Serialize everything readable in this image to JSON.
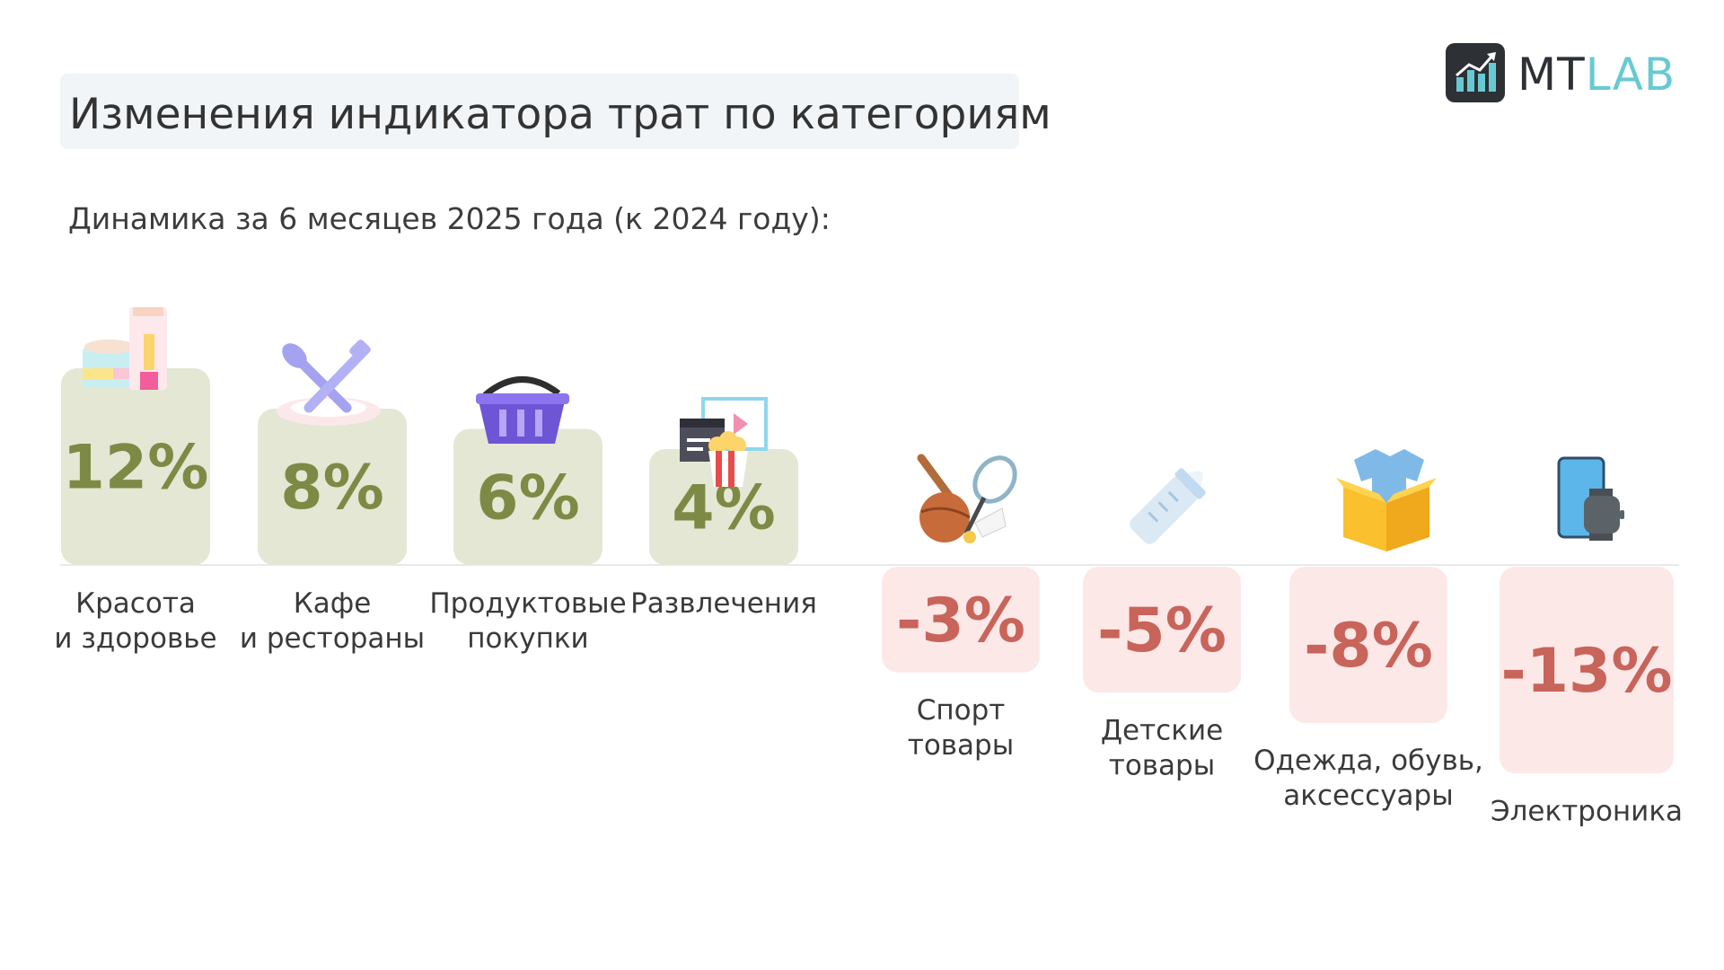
{
  "header": {
    "title": "Изменения индикатора трат по категориям",
    "subtitle": "Динамика за 6 месяцев 2025 года (к 2024 году):"
  },
  "logo": {
    "text_part1": "MT",
    "text_part2": "LAB",
    "icon": "chart-arrow-logo-icon"
  },
  "colors": {
    "positive_box": "#e4e7d4",
    "positive_text": "#7d8a45",
    "negative_box": "#fde8e8",
    "negative_text": "#c8645a",
    "accent": "#69c9d2"
  },
  "chart_data": {
    "type": "bar",
    "unit": "%",
    "categories": [
      {
        "label": [
          "Красота",
          "и здоровье"
        ],
        "value": 12,
        "display": "12%",
        "icon": "cosmetics-icon"
      },
      {
        "label": [
          "Кафе",
          "и рестораны"
        ],
        "value": 8,
        "display": "8%",
        "icon": "spoon-fork-plate-icon"
      },
      {
        "label": [
          "Продуктовые",
          "покупки"
        ],
        "value": 6,
        "display": "6%",
        "icon": "shopping-basket-icon"
      },
      {
        "label": [
          "Развлечения"
        ],
        "value": 4,
        "display": "4%",
        "icon": "clapperboard-popcorn-icon"
      },
      {
        "label": [
          "Спорт",
          "товары"
        ],
        "value": -3,
        "display": "-3%",
        "icon": "sport-ball-racket-icon"
      },
      {
        "label": [
          "Детские",
          "товары"
        ],
        "value": -5,
        "display": "-5%",
        "icon": "baby-bottle-icon"
      },
      {
        "label": [
          "Одежда, обувь,",
          "аксессуары"
        ],
        "value": -8,
        "display": "-8%",
        "icon": "clothes-box-icon"
      },
      {
        "label": [
          "Электроника"
        ],
        "value": -13,
        "display": "-13%",
        "icon": "phone-watch-icon"
      }
    ]
  }
}
